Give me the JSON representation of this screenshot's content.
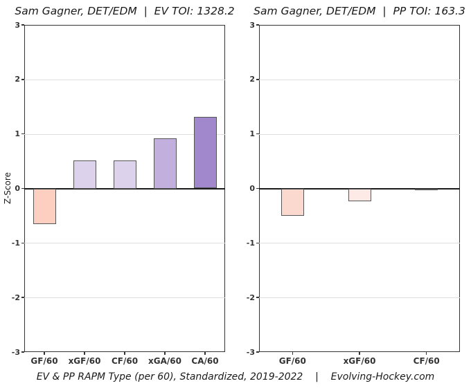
{
  "caption": "EV & PP RAPM Type (per 60), Standardized, 2019-2022    |    Evolving-Hockey.com",
  "style": {
    "background": "#ffffff",
    "axis_border_color": "#333333",
    "zero_line_color": "#1a1a1a",
    "grid_color": "#dedede",
    "bar_border_color": "#555555",
    "text_color": "#1a1a1a",
    "tick_label_color": "#333333"
  },
  "chart_data": [
    {
      "type": "bar",
      "title": "Sam Gagner, DET/EDM  |  EV TOI: 1328.2",
      "xlabel": "",
      "ylabel": "Z-Score",
      "ylim": [
        -3,
        3
      ],
      "yticks": [
        3,
        2,
        1,
        0,
        -1,
        -2,
        -3
      ],
      "grid": true,
      "legend": "none",
      "categories": [
        "GF/60",
        "xGF/60",
        "CF/60",
        "xGA/60",
        "CA/60"
      ],
      "values": [
        -0.65,
        0.52,
        0.52,
        0.92,
        1.31
      ],
      "bar_colors": [
        "#fccfc0",
        "#dcd2ec",
        "#dcd2ec",
        "#c3afdd",
        "#a188cd"
      ]
    },
    {
      "type": "bar",
      "title": "Sam Gagner, DET/EDM  |  PP TOI: 163.3",
      "xlabel": "",
      "ylabel": "",
      "ylim": [
        -3,
        3
      ],
      "yticks": [
        3,
        2,
        1,
        0,
        -1,
        -2,
        -3
      ],
      "grid": true,
      "legend": "none",
      "categories": [
        "GF/60",
        "xGF/60",
        "CF/60"
      ],
      "values": [
        -0.5,
        -0.23,
        -0.03
      ],
      "bar_colors": [
        "#fbd9ce",
        "#fdeae6",
        "#ffffff"
      ]
    }
  ]
}
